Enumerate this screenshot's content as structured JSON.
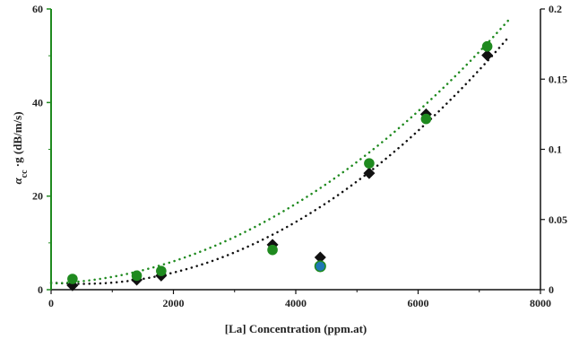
{
  "chart_data": {
    "type": "scatter",
    "title": "",
    "xlabel": "[La] Concentration (ppm.at)",
    "ylabel": "αcc ·g (dB/m/s)",
    "ylabel_parts": {
      "main": "α",
      "sub": "cc",
      "rest": " ·g (dB/m/s)"
    },
    "y2label": "",
    "xlim": [
      0,
      8000
    ],
    "ylim": [
      0,
      60
    ],
    "y2lim": [
      0,
      0.2
    ],
    "x_ticks": [
      "0",
      "2000",
      "4000",
      "6000",
      "8000"
    ],
    "y_ticks": [
      "0",
      "20",
      "40",
      "60"
    ],
    "y2_ticks": [
      "0",
      "0.05",
      "0.1",
      "0.15",
      "0.2"
    ],
    "grid": false,
    "colors": {
      "green": "#1f8a1f",
      "black": "#111111",
      "outlier": "#1f77b4"
    },
    "series": [
      {
        "axis": "right",
        "marker": "diamond",
        "color": "#111111",
        "x": [
          350,
          1400,
          1800,
          3620,
          4400,
          5200,
          6130,
          7130
        ],
        "y": [
          0.003,
          0.007,
          0.01,
          0.032,
          0.023,
          0.083,
          0.125,
          0.167
        ],
        "fit": {
          "type": "poly",
          "coef": [
            0.0051,
            -3.7e-06,
            3.62e-09
          ],
          "xrange": [
            0,
            7500
          ]
        }
      },
      {
        "axis": "left",
        "marker": "circle",
        "color": "#1f8a1f",
        "x": [
          350,
          1400,
          1800,
          3620,
          4400,
          5200,
          6130,
          7130
        ],
        "y": [
          2.3,
          3,
          4,
          8.5,
          5,
          27,
          36.5,
          52
        ],
        "outlier_index": 4,
        "fit": {
          "type": "poly",
          "coef": [
            1.3,
            0.0005,
            9.4e-07
          ],
          "xrange": [
            0,
            7500
          ]
        }
      }
    ]
  }
}
